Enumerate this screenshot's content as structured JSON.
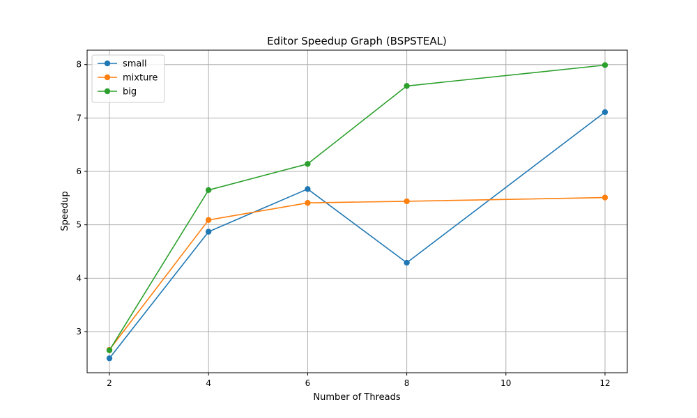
{
  "chart_data": {
    "type": "line",
    "title": "Editor Speedup Graph (BSPSTEAL)",
    "xlabel": "Number of Threads",
    "ylabel": "Speedup",
    "x": [
      2,
      4,
      6,
      8,
      12
    ],
    "xticks": [
      2,
      4,
      6,
      8,
      10,
      12
    ],
    "yticks": [
      3,
      4,
      5,
      6,
      7,
      8
    ],
    "xlim": [
      1.55,
      12.45
    ],
    "ylim": [
      2.23,
      8.27
    ],
    "grid": true,
    "legend_position": "top-left",
    "series": [
      {
        "name": "small",
        "color": "#1f77b4",
        "values": [
          2.5,
          4.87,
          5.67,
          4.29,
          7.11
        ]
      },
      {
        "name": "mixture",
        "color": "#ff7f0e",
        "values": [
          2.66,
          5.09,
          5.41,
          5.44,
          5.51
        ]
      },
      {
        "name": "big",
        "color": "#2ca02c",
        "values": [
          2.65,
          5.65,
          6.14,
          7.6,
          7.99
        ]
      }
    ]
  }
}
